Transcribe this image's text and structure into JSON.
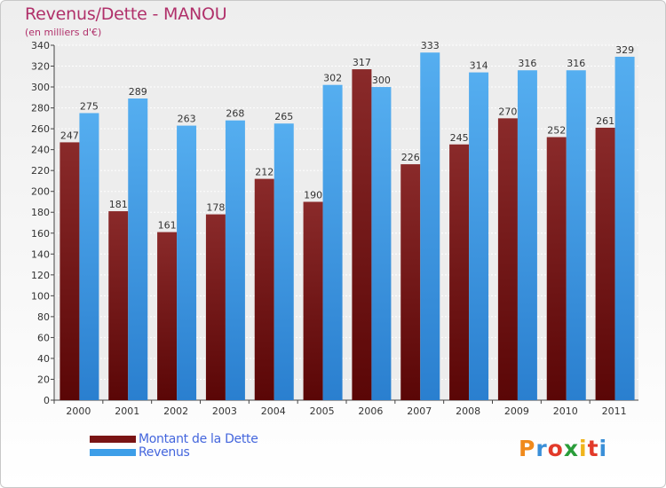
{
  "chart_data": {
    "type": "bar",
    "title": "Revenus/Dette - MANOU",
    "subtitle": "(en milliers d'€)",
    "categories": [
      "2000",
      "2001",
      "2002",
      "2003",
      "2004",
      "2005",
      "2006",
      "2007",
      "2008",
      "2009",
      "2010",
      "2011"
    ],
    "series": [
      {
        "name": "Montant de la Dette",
        "color": "#7a1414",
        "values": [
          247,
          181,
          161,
          178,
          212,
          190,
          317,
          226,
          245,
          270,
          252,
          261
        ]
      },
      {
        "name": "Revenus",
        "color": "#3d9ee8",
        "values": [
          275,
          289,
          263,
          268,
          265,
          302,
          300,
          333,
          314,
          316,
          316,
          329
        ]
      }
    ],
    "ylim": [
      0,
      340
    ],
    "yticks": [
      0,
      20,
      40,
      60,
      80,
      100,
      120,
      140,
      160,
      180,
      200,
      220,
      240,
      260,
      280,
      300,
      320,
      340
    ],
    "grid": true,
    "legend_position": "bottom-left"
  },
  "logo": {
    "text": "Proxiti"
  }
}
